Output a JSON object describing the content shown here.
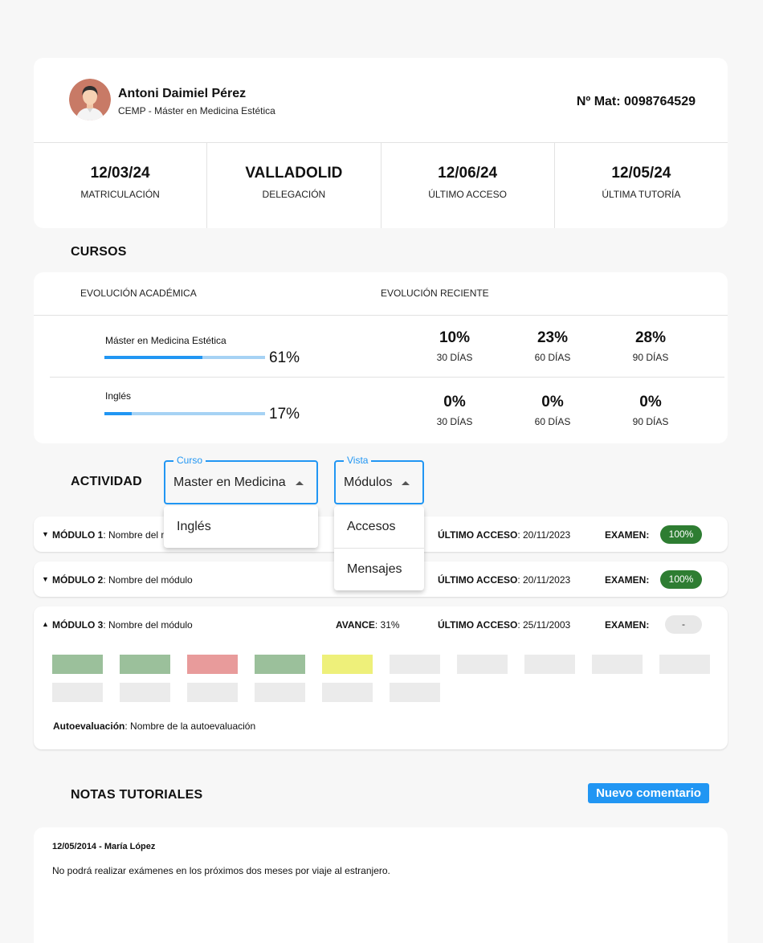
{
  "student": {
    "name": "Antoni Daimiel Pérez",
    "program": "CEMP - Máster en Medicina Estética",
    "enrollment": "Nº Mat: 0098764529"
  },
  "stats": [
    {
      "value": "12/03/24",
      "label": "MATRICULACIÓN"
    },
    {
      "value": "VALLADOLID",
      "label": "DELEGACIÓN"
    },
    {
      "value": "12/06/24",
      "label": "ÚLTIMO ACCESO"
    },
    {
      "value": "12/05/24",
      "label": "ÚLTIMA TUTORÍA"
    }
  ],
  "courses": {
    "title": "CURSOS",
    "col_academic": "EVOLUCIÓN ACADÉMICA",
    "col_recent": "EVOLUCIÓN RECIENTE",
    "rows": [
      {
        "name": "Máster en Medicina Estética",
        "progress": 0.61,
        "progress_label": "61%",
        "recent": [
          {
            "value": "10%",
            "label": "30 DÍAS"
          },
          {
            "value": "23%",
            "label": "60 DÍAS"
          },
          {
            "value": "28%",
            "label": "90 DÍAS"
          }
        ]
      },
      {
        "name": "Inglés",
        "progress": 0.17,
        "progress_label": "17%",
        "recent": [
          {
            "value": "0%",
            "label": "30 DÍAS"
          },
          {
            "value": "0%",
            "label": "60 DÍAS"
          },
          {
            "value": "0%",
            "label": "90 DÍAS"
          }
        ]
      }
    ]
  },
  "activity": {
    "title": "ACTIVIDAD",
    "course_select": {
      "legend": "Curso",
      "value": "Master en Medicina",
      "options": [
        "Inglés"
      ]
    },
    "view_select": {
      "legend": "Vista",
      "value": "Módulos",
      "options": [
        "Accesos",
        "Mensajes"
      ]
    }
  },
  "modules": [
    {
      "label": "MÓDULO 1",
      "name": ": Nombre del módulo",
      "last_access_label": "ÚLTIMO ACCESO",
      "last_access": ": 20/11/2023",
      "exam_label": "EXAMEN:",
      "exam": "100%"
    },
    {
      "label": "MÓDULO 2",
      "name": ": Nombre del módulo",
      "last_access_label": "ÚLTIMO ACCESO",
      "last_access": ": 20/11/2023",
      "exam_label": "EXAMEN:",
      "exam": "100%"
    },
    {
      "label": "MÓDULO 3",
      "name": ": Nombre del módulo",
      "progress_label": "AVANCE",
      "progress": ": 31%",
      "last_access_label": "ÚLTIMO ACCESO",
      "last_access": ": 25/11/2003",
      "exam_label": "EXAMEN:",
      "exam": "-",
      "lesson_states": [
        "done",
        "done",
        "failed",
        "done",
        "in-progress",
        "pending",
        "pending",
        "pending",
        "pending",
        "pending",
        "pending",
        "pending",
        "pending",
        "pending",
        "pending",
        "pending"
      ],
      "self_eval_label": "Autoevaluación",
      "self_eval": ": Nombre de la autoevaluación"
    }
  ],
  "colors": {
    "accent": "#2196f3",
    "pass": "#2e7d32",
    "done": "#9bc09b",
    "failed": "#e89b9b",
    "in-progress": "#eef07a",
    "pending": "#ebebeb"
  },
  "notes": {
    "title": "NOTAS TUTORIALES",
    "new_comment": "Nuevo comentario",
    "items": [
      {
        "header": "12/05/2014 - María López",
        "body": "No podrá realizar exámenes en los próximos dos meses por viaje al estranjero."
      }
    ]
  }
}
